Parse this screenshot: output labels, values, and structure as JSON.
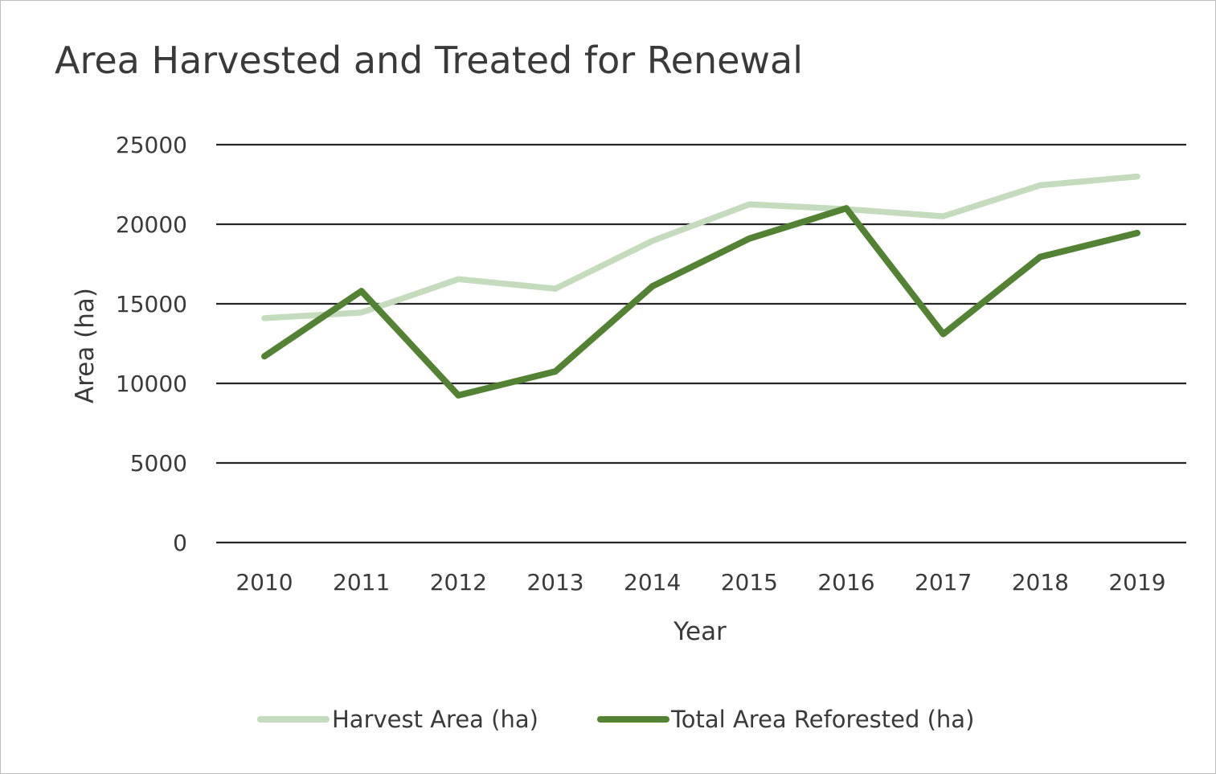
{
  "chart_data": {
    "type": "line",
    "title": "Area Harvested and Treated for Renewal",
    "xlabel": "Year",
    "ylabel": "Area (ha)",
    "categories": [
      "2010",
      "2011",
      "2012",
      "2013",
      "2014",
      "2015",
      "2016",
      "2017",
      "2018",
      "2019"
    ],
    "ylim": [
      0,
      25000
    ],
    "yticks": [
      "0",
      "5000",
      "10000",
      "15000",
      "20000",
      "25000"
    ],
    "grid": true,
    "legend": "bottom",
    "series": [
      {
        "name": "Harvest Area (ha)",
        "color": "#c5dbbd",
        "values": [
          14100,
          14450,
          16550,
          15950,
          18950,
          21250,
          20950,
          20500,
          22450,
          23000
        ]
      },
      {
        "name": "Total Area Reforested (ha)",
        "color": "#548235",
        "values": [
          11700,
          15800,
          9250,
          10750,
          16100,
          19100,
          21000,
          13100,
          17950,
          19450
        ]
      }
    ]
  }
}
